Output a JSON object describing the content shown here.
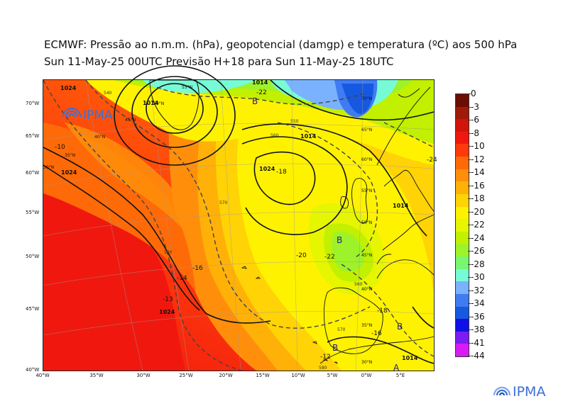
{
  "header": {
    "title_line1": "ECMWF:  Pressão ao n.m.m. (hPa), geopotencial (damgp) e temperatura (ºC) aos 500 hPa",
    "title_line2": "Sun 11-May-25 00UTC Previsão H+18 para Sun 11-May-25 18UTC"
  },
  "map": {
    "lat_labels": [
      "70°W",
      "65°W",
      "60°W",
      "55°W",
      "50°W",
      "45°W",
      "40°W"
    ],
    "lon_labels": [
      "40°W",
      "35°W",
      "30°W",
      "25°W",
      "20°W",
      "15°W",
      "10°W",
      "5°W",
      "0°W",
      "5°E"
    ],
    "grid_lat_labels": [
      "55°N",
      "50°N",
      "45°N",
      "40°N",
      "35°N",
      "30°N",
      "70°N",
      "65°N",
      "60°N",
      "55°N",
      "50°N",
      "45°N",
      "40°N",
      "35°N",
      "30°N"
    ],
    "pressure_labels": [
      "1024",
      "1024",
      "1024",
      "1024",
      "1014",
      "1014",
      "1014",
      "1014",
      "1014"
    ],
    "geopotential_labels": [
      "560",
      "570",
      "580",
      "550",
      "540",
      "560",
      "570",
      "580"
    ],
    "temperature_labels": [
      "-10",
      "-14",
      "-16",
      "-18",
      "-20",
      "-22",
      "-12",
      "-16",
      "-18",
      "-13",
      "-22",
      "-24"
    ],
    "low_high_markers": [
      "B",
      "B",
      "B",
      "B",
      "A"
    ],
    "inset_logo_text": "IPMA"
  },
  "colorbar": {
    "labels": [
      "0",
      "-3",
      "-6",
      "-8",
      "-10",
      "-12",
      "-14",
      "-16",
      "-18",
      "-20",
      "-22",
      "-24",
      "-26",
      "-28",
      "-30",
      "-32",
      "-34",
      "-36",
      "-38",
      "-41",
      "-44"
    ],
    "colors": [
      "#6b0d00",
      "#a01a0a",
      "#d0150b",
      "#f0180e",
      "#fe3a0c",
      "#fe6a08",
      "#ff8f0b",
      "#ffb108",
      "#ffd305",
      "#fff200",
      "#e6f500",
      "#c1f000",
      "#9df22a",
      "#77f76f",
      "#77fbd6",
      "#7ab2ff",
      "#3f7cf2",
      "#1658e0",
      "#0f10e6",
      "#7a1cf2",
      "#d81bf2"
    ]
  },
  "footer": {
    "logo_text": "IPMA"
  },
  "colors": {
    "ocean_warm": "#f6a51f",
    "contour": "#111111",
    "dashed": "#444444"
  }
}
